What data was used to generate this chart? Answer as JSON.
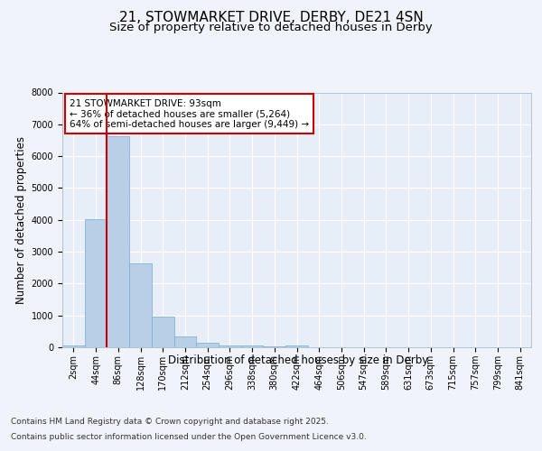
{
  "title_line1": "21, STOWMARKET DRIVE, DERBY, DE21 4SN",
  "title_line2": "Size of property relative to detached houses in Derby",
  "xlabel": "Distribution of detached houses by size in Derby",
  "ylabel": "Number of detached properties",
  "categories": [
    "2sqm",
    "44sqm",
    "86sqm",
    "128sqm",
    "170sqm",
    "212sqm",
    "254sqm",
    "296sqm",
    "338sqm",
    "380sqm",
    "422sqm",
    "464sqm",
    "506sqm",
    "547sqm",
    "589sqm",
    "631sqm",
    "673sqm",
    "715sqm",
    "757sqm",
    "799sqm",
    "841sqm"
  ],
  "values": [
    50,
    4020,
    6630,
    2640,
    960,
    350,
    130,
    65,
    50,
    40,
    50,
    0,
    0,
    0,
    0,
    0,
    0,
    0,
    0,
    0,
    0
  ],
  "bar_color": "#b8cfe8",
  "bar_edge_color": "#7aaad0",
  "vline_x": 1.5,
  "vline_color": "#cc0000",
  "annotation_text": "21 STOWMARKET DRIVE: 93sqm\n← 36% of detached houses are smaller (5,264)\n64% of semi-detached houses are larger (9,449) →",
  "annotation_box_facecolor": "#ffffff",
  "annotation_box_edgecolor": "#cc0000",
  "ylim": [
    0,
    8000
  ],
  "yticks": [
    0,
    1000,
    2000,
    3000,
    4000,
    5000,
    6000,
    7000,
    8000
  ],
  "fig_facecolor": "#f0f4fa",
  "plot_facecolor": "#e8eef8",
  "grid_color": "#ffffff",
  "footnote_line1": "Contains HM Land Registry data © Crown copyright and database right 2025.",
  "footnote_line2": "Contains public sector information licensed under the Open Government Licence v3.0.",
  "title_fontsize": 11,
  "subtitle_fontsize": 9.5,
  "axis_label_fontsize": 8.5,
  "tick_fontsize": 7,
  "annotation_fontsize": 7.5,
  "footnote_fontsize": 6.5
}
